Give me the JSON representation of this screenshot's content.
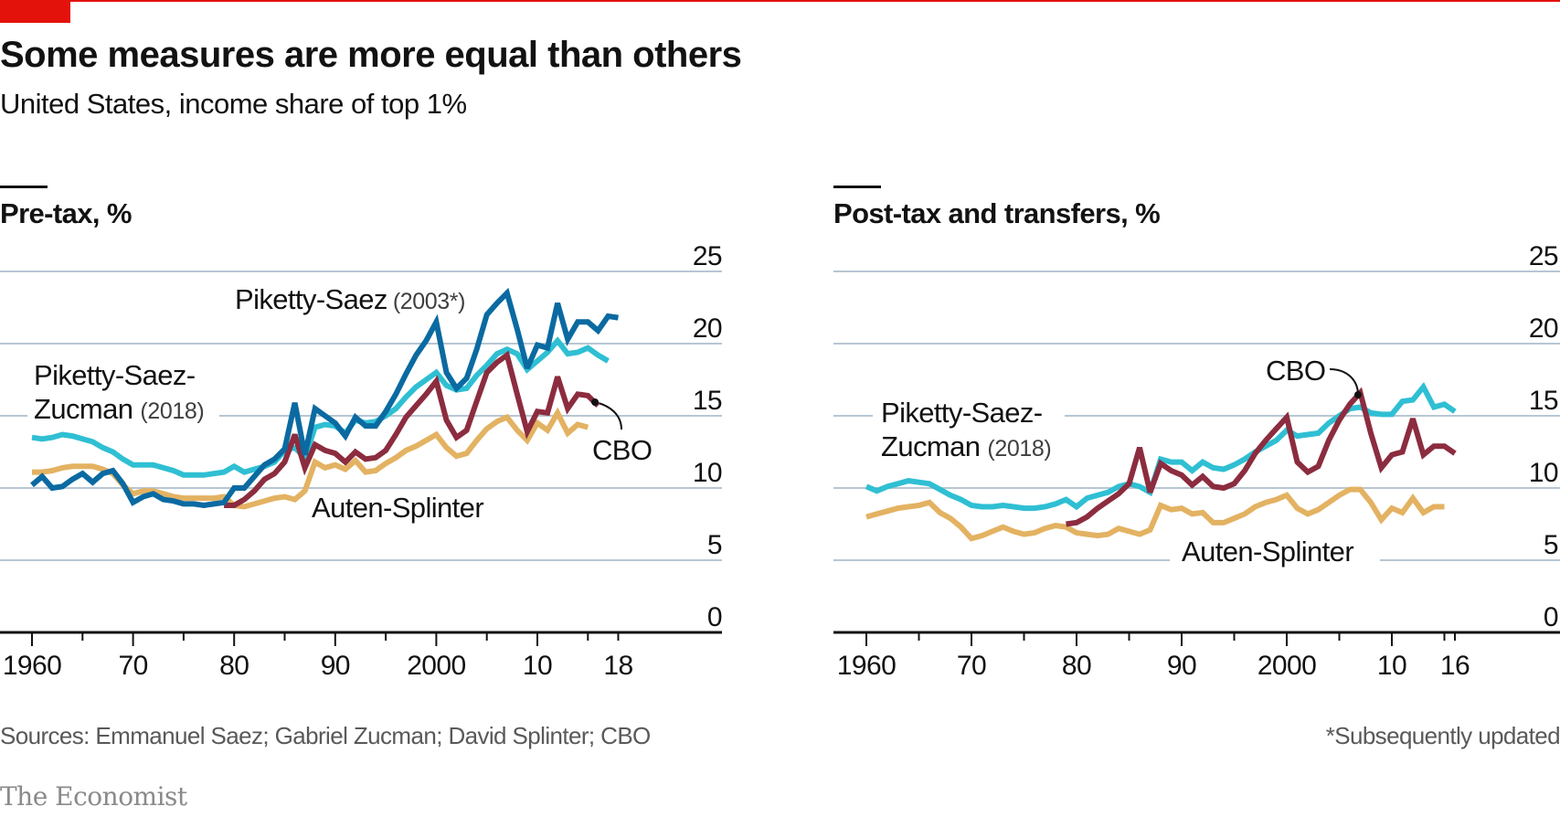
{
  "header": {
    "title": "Some measures are more equal than others",
    "subtitle": "United States, income share of top 1%"
  },
  "footer": {
    "source": "Sources: Emmanuel Saez; Gabriel Zucman; David Splinter; CBO",
    "footnote": "*Subsequently updated",
    "brand": "The Economist"
  },
  "colors": {
    "accent": "#e3120b",
    "piketty_saez": "#0a6aa1",
    "psz": "#2fbfd3",
    "cbo": "#8c2c3f",
    "auten_splinter": "#e3b262",
    "grid": "#b7c6d3",
    "axis": "#121212"
  },
  "chart_data": [
    {
      "type": "line",
      "title": "Pre-tax, %",
      "xlabel": "",
      "ylabel": "%",
      "xlim": [
        1960,
        2018
      ],
      "ylim": [
        0,
        25
      ],
      "y_ticks": [
        0,
        5,
        10,
        15,
        20,
        25
      ],
      "x_ticks": [
        {
          "value": 1960,
          "label": "1960"
        },
        {
          "value": 1970,
          "label": "70"
        },
        {
          "value": 1980,
          "label": "80"
        },
        {
          "value": 1990,
          "label": "90"
        },
        {
          "value": 2000,
          "label": "2000"
        },
        {
          "value": 2010,
          "label": "10"
        },
        {
          "value": 2018,
          "label": "18"
        }
      ],
      "grid": true,
      "legend": "inline labels",
      "labels": {
        "piketty_saez_name": "Piketty-Saez",
        "piketty_saez_note": "(2003*)",
        "psz_line1": "Piketty-Saez-",
        "psz_line2": "Zucman",
        "psz_note": "(2018)",
        "cbo": "CBO",
        "auten_splinter": "Auten-Splinter"
      },
      "series": [
        {
          "name": "Piketty-Saez (2003*)",
          "key": "piketty_saez",
          "start": 1960,
          "values": [
            10.2,
            10.8,
            10.0,
            10.1,
            10.6,
            11.0,
            10.4,
            11.0,
            11.2,
            10.3,
            9.0,
            9.4,
            9.6,
            9.2,
            9.1,
            8.9,
            8.9,
            8.8,
            8.9,
            9.0,
            10.0,
            10.0,
            10.8,
            11.6,
            12.0,
            12.7,
            15.9,
            12.3,
            15.5,
            15.0,
            14.5,
            13.6,
            14.9,
            14.3,
            14.3,
            15.3,
            16.5,
            17.9,
            19.2,
            20.2,
            21.5,
            18.0,
            16.9,
            17.6,
            19.6,
            22.0,
            22.8,
            23.5,
            21.0,
            18.3,
            19.9,
            19.7,
            22.8,
            20.3,
            21.5,
            21.5,
            20.9,
            21.9,
            21.8
          ]
        },
        {
          "name": "Piketty-Saez-Zucman (2018)",
          "key": "psz",
          "start": 1960,
          "values": [
            13.5,
            13.4,
            13.5,
            13.7,
            13.6,
            13.4,
            13.2,
            12.8,
            12.5,
            12.0,
            11.6,
            11.6,
            11.6,
            11.4,
            11.2,
            10.9,
            10.9,
            10.9,
            11.0,
            11.1,
            11.5,
            11.1,
            11.3,
            11.5,
            11.8,
            12.6,
            12.8,
            12.1,
            14.2,
            14.4,
            14.3,
            13.8,
            14.7,
            14.5,
            14.6,
            15.0,
            15.5,
            16.3,
            17.0,
            17.5,
            18.0,
            17.1,
            16.8,
            16.9,
            17.8,
            18.5,
            19.3,
            19.6,
            19.3,
            18.2,
            18.8,
            19.4,
            20.2,
            19.3,
            19.4,
            19.7,
            19.2,
            18.8
          ]
        },
        {
          "name": "CBO",
          "key": "cbo",
          "start": 1979,
          "values": [
            8.8,
            8.8,
            9.2,
            9.8,
            10.6,
            11.0,
            11.8,
            13.7,
            11.4,
            13.0,
            12.6,
            12.4,
            11.8,
            12.5,
            12.0,
            12.1,
            12.6,
            13.7,
            14.9,
            15.7,
            16.5,
            17.4,
            14.7,
            13.5,
            14.0,
            16.0,
            18.0,
            18.7,
            19.2,
            16.5,
            13.9,
            15.3,
            15.2,
            17.7,
            15.5,
            16.5,
            16.4,
            15.7
          ]
        },
        {
          "name": "Auten-Splinter",
          "key": "auten_splinter",
          "start": 1960,
          "values": [
            11.1,
            11.1,
            11.2,
            11.4,
            11.5,
            11.5,
            11.5,
            11.3,
            11.0,
            10.2,
            9.6,
            9.8,
            9.8,
            9.6,
            9.4,
            9.3,
            9.3,
            9.3,
            9.3,
            9.4,
            8.8,
            8.7,
            8.9,
            9.1,
            9.3,
            9.4,
            9.2,
            9.8,
            11.8,
            11.4,
            11.6,
            11.3,
            11.9,
            11.1,
            11.2,
            11.7,
            12.1,
            12.6,
            12.9,
            13.3,
            13.7,
            12.8,
            12.2,
            12.4,
            13.3,
            14.1,
            14.6,
            14.9,
            14.0,
            13.3,
            14.5,
            14.0,
            15.2,
            13.8,
            14.4,
            14.2
          ]
        }
      ]
    },
    {
      "type": "line",
      "title": "Post-tax and transfers, %",
      "xlabel": "",
      "ylabel": "%",
      "xlim": [
        1960,
        2016
      ],
      "ylim": [
        0,
        25
      ],
      "y_ticks": [
        0,
        5,
        10,
        15,
        20,
        25
      ],
      "x_ticks": [
        {
          "value": 1960,
          "label": "1960"
        },
        {
          "value": 1970,
          "label": "70"
        },
        {
          "value": 1980,
          "label": "80"
        },
        {
          "value": 1990,
          "label": "90"
        },
        {
          "value": 2000,
          "label": "2000"
        },
        {
          "value": 2010,
          "label": "10"
        },
        {
          "value": 2016,
          "label": "16"
        }
      ],
      "grid": true,
      "legend": "inline labels",
      "labels": {
        "psz_line1": "Piketty-Saez-",
        "psz_line2": "Zucman",
        "psz_note": "(2018)",
        "cbo": "CBO",
        "auten_splinter": "Auten-Splinter"
      },
      "series": [
        {
          "name": "Piketty-Saez-Zucman (2018)",
          "key": "psz",
          "start": 1960,
          "values": [
            10.1,
            9.8,
            10.1,
            10.3,
            10.5,
            10.4,
            10.3,
            9.9,
            9.5,
            9.2,
            8.8,
            8.7,
            8.7,
            8.8,
            8.7,
            8.6,
            8.6,
            8.7,
            8.9,
            9.2,
            8.7,
            9.3,
            9.5,
            9.7,
            10.1,
            10.3,
            10.1,
            9.7,
            12.0,
            11.8,
            11.8,
            11.2,
            11.8,
            11.4,
            11.3,
            11.6,
            12.0,
            12.5,
            12.9,
            13.3,
            14.0,
            13.6,
            13.7,
            13.8,
            14.5,
            15.0,
            15.5,
            15.6,
            15.2,
            15.1,
            15.1,
            16.0,
            16.1,
            17.0,
            15.6,
            15.8,
            15.3
          ]
        },
        {
          "name": "CBO",
          "key": "cbo",
          "start": 1979,
          "values": [
            7.5,
            7.6,
            8.0,
            8.6,
            9.1,
            9.6,
            10.3,
            12.8,
            9.7,
            11.7,
            11.2,
            10.9,
            10.2,
            10.8,
            10.1,
            10.0,
            10.3,
            11.2,
            12.4,
            13.3,
            14.1,
            14.9,
            11.8,
            11.1,
            11.5,
            13.3,
            14.7,
            15.8,
            16.6,
            13.8,
            11.4,
            12.3,
            12.5,
            14.8,
            12.3,
            12.9,
            12.9,
            12.4
          ]
        },
        {
          "name": "Auten-Splinter",
          "key": "auten_splinter",
          "start": 1960,
          "values": [
            8.0,
            8.2,
            8.4,
            8.6,
            8.7,
            8.8,
            9.0,
            8.3,
            7.9,
            7.3,
            6.5,
            6.7,
            7.0,
            7.3,
            7.0,
            6.8,
            6.9,
            7.2,
            7.4,
            7.3,
            6.9,
            6.8,
            6.7,
            6.8,
            7.2,
            7.0,
            6.8,
            7.1,
            8.8,
            8.5,
            8.6,
            8.2,
            8.3,
            7.6,
            7.6,
            7.9,
            8.2,
            8.7,
            9.0,
            9.2,
            9.5,
            8.6,
            8.2,
            8.5,
            9.0,
            9.5,
            9.9,
            9.9,
            9.0,
            7.8,
            8.6,
            8.3,
            9.3,
            8.3,
            8.7,
            8.7
          ]
        }
      ]
    }
  ]
}
